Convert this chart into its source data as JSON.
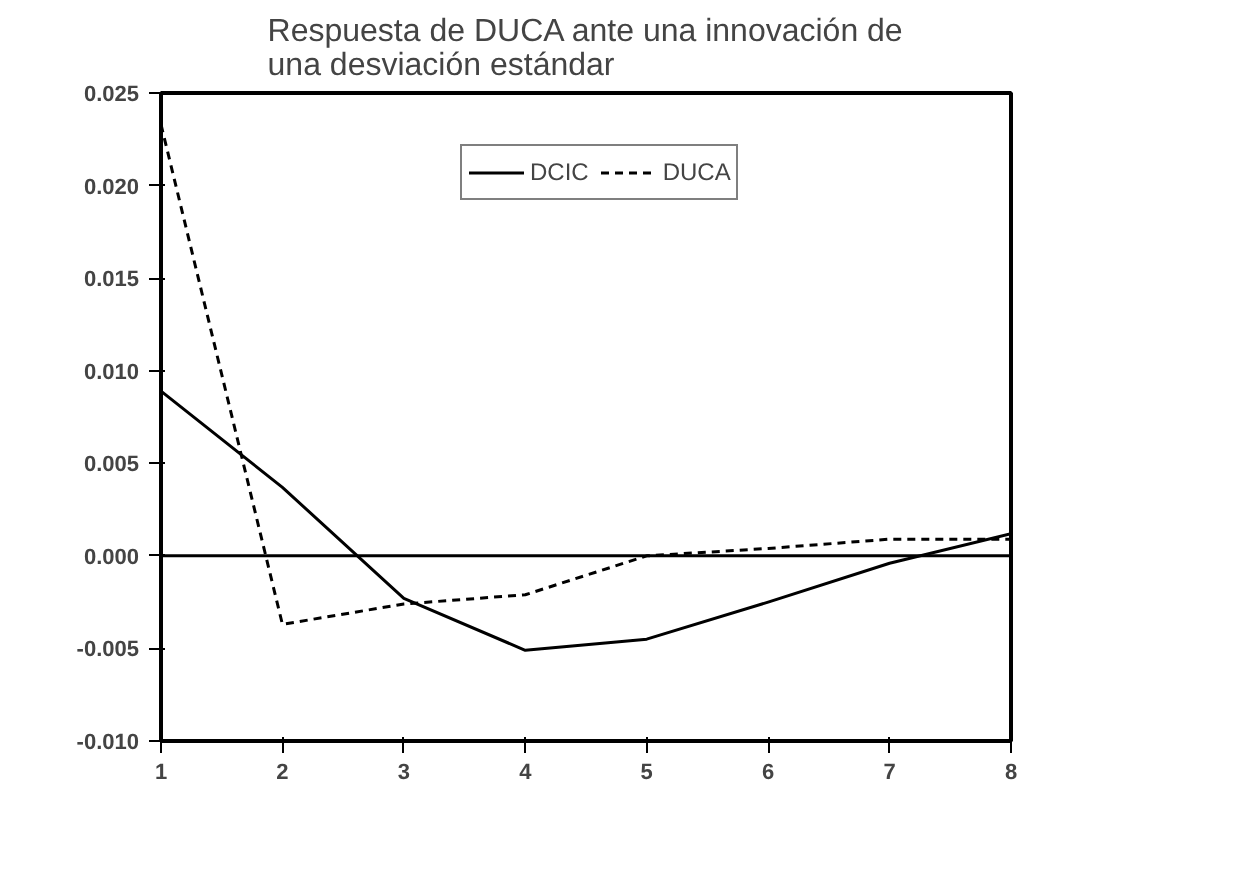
{
  "chart_data": {
    "type": "line",
    "title": "Respuesta de DUCA ante una innovación de\nuna desviación estándar",
    "x": [
      1,
      2,
      3,
      4,
      5,
      6,
      7,
      8
    ],
    "series": [
      {
        "name": "DCIC",
        "color": "#000000",
        "line_style": "solid",
        "values": [
          0.0089,
          0.0037,
          -0.0023,
          -0.0051,
          -0.0045,
          -0.0025,
          -0.0004,
          0.0012
        ]
      },
      {
        "name": "DUCA",
        "color": "#000000",
        "line_style": "dashed",
        "values": [
          0.0233,
          -0.0037,
          -0.0026,
          -0.0021,
          0.0,
          0.0004,
          0.0009,
          0.0009
        ]
      }
    ],
    "xlim": [
      1,
      8
    ],
    "xticks": [
      1,
      2,
      3,
      4,
      5,
      6,
      7,
      8
    ],
    "ylim": [
      -0.01,
      0.025
    ],
    "yticks": [
      {
        "value": -0.01,
        "label": "-0.010"
      },
      {
        "value": -0.005,
        "label": "-0.005"
      },
      {
        "value": 0.0,
        "label": "0.000"
      },
      {
        "value": 0.005,
        "label": "0.005"
      },
      {
        "value": 0.01,
        "label": "0.010"
      },
      {
        "value": 0.015,
        "label": "0.015"
      },
      {
        "value": 0.02,
        "label": "0.020"
      },
      {
        "value": 0.025,
        "label": "0.025"
      }
    ],
    "ref_lines": [
      {
        "axis": "y",
        "value": 0.0,
        "color": "#000000"
      }
    ],
    "legend": "top",
    "grid": false
  }
}
